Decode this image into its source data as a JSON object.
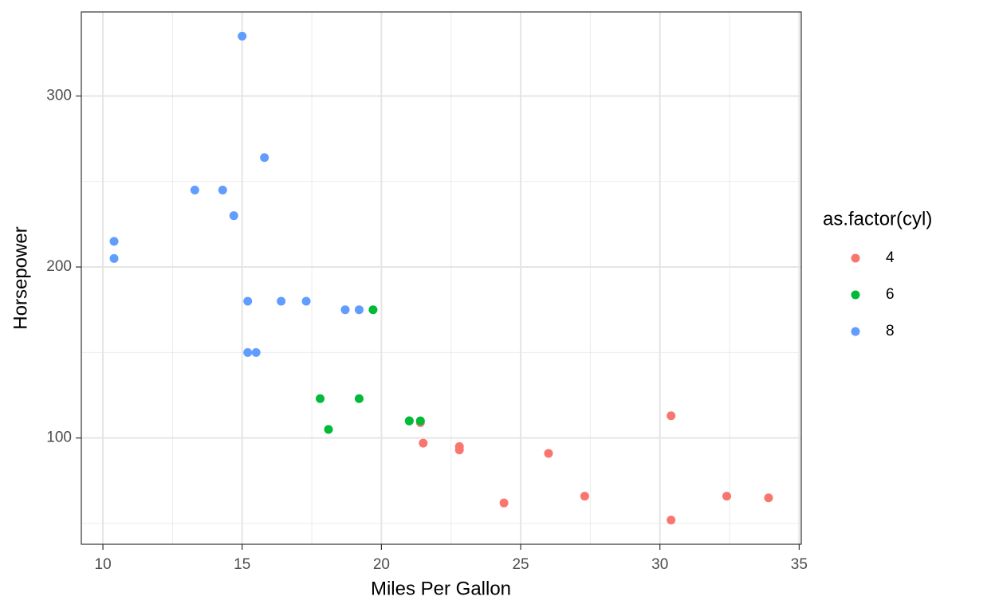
{
  "chart_data": {
    "type": "scatter",
    "x_label": "Miles Per Gallon",
    "y_label": "Horsepower",
    "legend_title": "as.factor(cyl)",
    "legend": "right",
    "grid": true,
    "xlim": [
      9.225,
      35.075
    ],
    "ylim": [
      37.85,
      349.15
    ],
    "xticks": [
      10,
      15,
      20,
      25,
      30,
      35
    ],
    "yticks": [
      100,
      200,
      300
    ],
    "x_minor_grid": [
      12.5,
      17.5,
      22.5,
      27.5,
      32.5
    ],
    "y_minor_grid": [
      50,
      150,
      250
    ],
    "series": [
      {
        "name": "4",
        "color": "#F8766D",
        "x": [
          22.8,
          24.4,
          22.8,
          32.4,
          30.4,
          33.9,
          21.5,
          27.3,
          26.0,
          30.4,
          21.4
        ],
        "y": [
          93,
          62,
          95,
          66,
          52,
          65,
          97,
          66,
          91,
          113,
          109
        ]
      },
      {
        "name": "6",
        "color": "#00BA38",
        "x": [
          21.0,
          21.0,
          21.4,
          18.1,
          19.2,
          17.8,
          19.7
        ],
        "y": [
          110,
          110,
          110,
          105,
          123,
          123,
          175
        ]
      },
      {
        "name": "8",
        "color": "#619CFF",
        "x": [
          18.7,
          14.3,
          16.4,
          17.3,
          15.2,
          10.4,
          10.4,
          14.7,
          15.5,
          15.2,
          13.3,
          19.2,
          15.8,
          15.0
        ],
        "y": [
          175,
          245,
          180,
          180,
          180,
          205,
          215,
          230,
          150,
          150,
          245,
          175,
          264,
          335
        ]
      }
    ]
  }
}
